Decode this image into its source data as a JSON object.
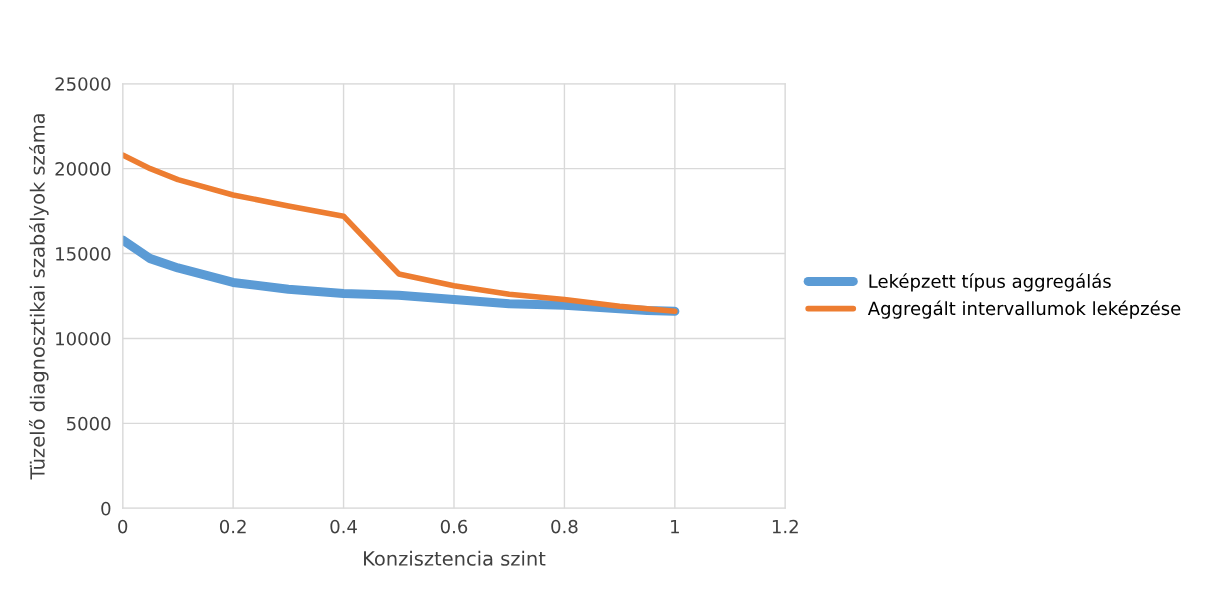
{
  "chart_data": {
    "type": "line",
    "xlabel": "Konzisztencia szint",
    "ylabel": "Tüzelő diagnosztikai szabályok száma",
    "series": [
      {
        "name": "Leképzett típus aggregálás",
        "color": "#5b9bd5",
        "x": [
          0,
          0.05,
          0.1,
          0.2,
          0.3,
          0.4,
          0.5,
          0.6,
          0.7,
          0.8,
          0.9,
          0.95,
          1
        ],
        "values": [
          15800,
          14700,
          14150,
          13300,
          12900,
          12650,
          12550,
          12300,
          12050,
          11950,
          11750,
          11650,
          11600
        ]
      },
      {
        "name": "Aggregált intervallumok leképzése",
        "color": "#ed7d31",
        "x": [
          0,
          0.05,
          0.1,
          0.2,
          0.3,
          0.4,
          0.5,
          0.6,
          0.7,
          0.8,
          0.9,
          0.95,
          1
        ],
        "values": [
          20800,
          20000,
          19350,
          18450,
          17800,
          17200,
          13800,
          13100,
          12600,
          12300,
          11900,
          11750,
          11600
        ]
      }
    ],
    "xlim": [
      0,
      1.2
    ],
    "xticks": [
      0,
      0.2,
      0.4,
      0.6,
      0.8,
      1,
      1.2
    ],
    "ylim": [
      0,
      25000
    ],
    "yticks": [
      0,
      5000,
      10000,
      15000,
      20000,
      25000
    ],
    "grid": true,
    "legend": "right",
    "marker": "none",
    "line_style": "solid"
  }
}
